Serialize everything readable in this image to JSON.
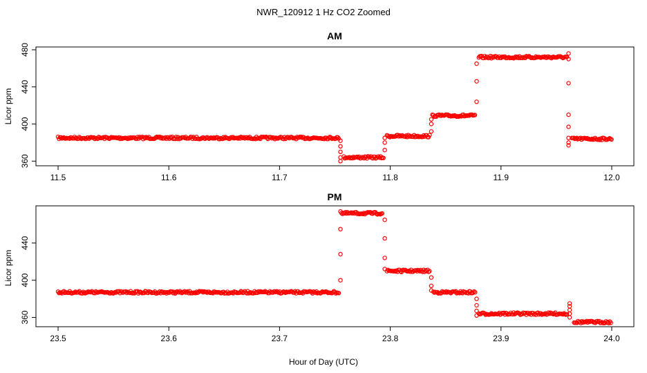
{
  "figure": {
    "title": "NWR_120912  1 Hz CO2 Zoomed",
    "xlabel": "Hour of Day (UTC)"
  },
  "colors": {
    "point": "#ff0000",
    "axis": "#000000",
    "background": "#ffffff"
  },
  "chart_data": [
    {
      "type": "scatter",
      "title": "AM",
      "xlabel": "",
      "ylabel": "Licor ppm",
      "xlim": [
        11.48,
        12.02
      ],
      "ylim": [
        355,
        483
      ],
      "xticks": [
        "11.5",
        "11.6",
        "11.7",
        "11.8",
        "11.9",
        "12.0"
      ],
      "xtick_values": [
        11.5,
        11.6,
        11.7,
        11.8,
        11.9,
        12.0
      ],
      "yticks": [
        "360",
        "400",
        "440",
        "480"
      ],
      "ytick_values": [
        360,
        400,
        440,
        480
      ],
      "marker": "open-circle",
      "segments": [
        {
          "x": [
            11.5,
            11.754
          ],
          "y": 385
        },
        {
          "x": [
            11.758,
            11.794
          ],
          "y": 364
        },
        {
          "x": [
            11.797,
            11.836
          ],
          "y": 387
        },
        {
          "x": [
            11.838,
            11.877
          ],
          "y": 409
        },
        {
          "x": [
            11.88,
            11.96
          ],
          "y": 472
        },
        {
          "x": [
            11.964,
            12.0
          ],
          "y": 384
        }
      ],
      "transitions": [
        {
          "x": 11.755,
          "y": [
            382,
            376,
            370,
            364,
            360
          ]
        },
        {
          "x": 11.795,
          "y": [
            372,
            380,
            385
          ]
        },
        {
          "x": 11.837,
          "y": [
            392,
            400,
            405
          ]
        },
        {
          "x": 11.878,
          "y": [
            424,
            446,
            465
          ]
        },
        {
          "x": 11.961,
          "y": [
            476,
            470,
            444,
            410,
            397,
            385,
            380,
            377
          ]
        }
      ]
    },
    {
      "type": "scatter",
      "title": "PM",
      "xlabel": "",
      "ylabel": "Licor ppm",
      "xlim": [
        23.48,
        24.02
      ],
      "ylim": [
        350,
        480
      ],
      "xticks": [
        "23.5",
        "23.6",
        "23.7",
        "23.8",
        "23.9",
        "24.0"
      ],
      "xtick_values": [
        23.5,
        23.6,
        23.7,
        23.8,
        23.9,
        24.0
      ],
      "yticks": [
        "360",
        "400",
        "440"
      ],
      "ytick_values": [
        360,
        400,
        440
      ],
      "marker": "open-circle",
      "segments": [
        {
          "x": [
            23.5,
            23.754
          ],
          "y": 387
        },
        {
          "x": [
            23.756,
            23.793
          ],
          "y": 472
        },
        {
          "x": [
            23.797,
            23.836
          ],
          "y": 410
        },
        {
          "x": [
            23.839,
            23.877
          ],
          "y": 387
        },
        {
          "x": [
            23.88,
            23.96
          ],
          "y": 364
        },
        {
          "x": [
            23.966,
            24.0
          ],
          "y": 355
        }
      ],
      "transitions": [
        {
          "x": 23.755,
          "y": [
            400,
            428,
            455,
            474
          ]
        },
        {
          "x": 23.795,
          "y": [
            465,
            445,
            424,
            412
          ]
        },
        {
          "x": 23.837,
          "y": [
            403,
            394,
            389
          ]
        },
        {
          "x": 23.878,
          "y": [
            380,
            373,
            367,
            362
          ]
        },
        {
          "x": 23.962,
          "y": [
            375,
            372,
            368,
            364,
            360
          ]
        }
      ]
    }
  ]
}
